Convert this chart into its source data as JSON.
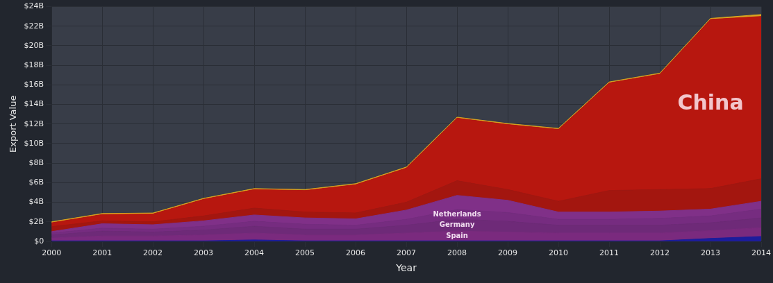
{
  "chart_data": {
    "type": "area",
    "stacked": true,
    "xlabel": "Year",
    "ylabel": "Export Value",
    "x": [
      2000,
      2001,
      2002,
      2003,
      2004,
      2005,
      2006,
      2007,
      2008,
      2009,
      2010,
      2011,
      2012,
      2013,
      2014
    ],
    "xlim": [
      2000,
      2014
    ],
    "xticks": [
      2000,
      2001,
      2002,
      2003,
      2004,
      2005,
      2006,
      2007,
      2008,
      2009,
      2010,
      2011,
      2012,
      2013,
      2014
    ],
    "ylim": [
      0,
      24
    ],
    "yticks": [
      {
        "value": 0,
        "label": "$0"
      },
      {
        "value": 2,
        "label": "$2B"
      },
      {
        "value": 4,
        "label": "$4B"
      },
      {
        "value": 6,
        "label": "$6B"
      },
      {
        "value": 8,
        "label": "$8B"
      },
      {
        "value": 10,
        "label": "$10B"
      },
      {
        "value": 12,
        "label": "$12B"
      },
      {
        "value": 14,
        "label": "$14B"
      },
      {
        "value": 16,
        "label": "$16B"
      },
      {
        "value": 18,
        "label": "$18B"
      },
      {
        "value": 20,
        "label": "$20B"
      },
      {
        "value": 22,
        "label": "$22B"
      },
      {
        "value": 24,
        "label": "$24B"
      }
    ],
    "grid": true,
    "legend": false,
    "series": [
      {
        "color": "#1c1c9c",
        "values": [
          0.05,
          0.05,
          0.05,
          0.05,
          0.15,
          0.05,
          0.05,
          0.05,
          0.05,
          0.05,
          0.05,
          0.05,
          0.05,
          0.3,
          0.5
        ]
      },
      {
        "name": "Spain",
        "color": "#7a2a7e",
        "values": [
          0.3,
          0.5,
          0.5,
          0.6,
          0.7,
          0.6,
          0.6,
          0.8,
          1.0,
          0.9,
          0.8,
          0.8,
          0.8,
          0.8,
          0.9
        ]
      },
      {
        "name": "Germany",
        "color": "#6e2a78",
        "values": [
          0.3,
          0.5,
          0.4,
          0.5,
          0.7,
          0.6,
          0.6,
          0.8,
          1.2,
          1.1,
          0.8,
          0.8,
          0.8,
          0.8,
          1.0
        ]
      },
      {
        "name": "Netherlands",
        "color": "#762c80",
        "values": [
          0.2,
          0.3,
          0.3,
          0.4,
          0.5,
          0.5,
          0.4,
          0.6,
          1.0,
          0.9,
          0.6,
          0.6,
          0.7,
          0.7,
          0.9
        ]
      },
      {
        "color": "#803088",
        "values": [
          0.15,
          0.45,
          0.45,
          0.55,
          0.65,
          0.65,
          0.65,
          0.95,
          1.45,
          1.25,
          0.75,
          0.75,
          0.75,
          0.7,
          0.8
        ]
      },
      {
        "color": "#a3160f",
        "values": [
          0.5,
          0.3,
          0.3,
          0.5,
          0.7,
          0.6,
          0.6,
          0.8,
          1.5,
          1.1,
          1.1,
          2.2,
          2.2,
          2.1,
          2.3
        ]
      },
      {
        "name": "China",
        "color": "#b7170f",
        "values": [
          0.4,
          0.65,
          0.8,
          1.7,
          1.9,
          2.2,
          2.9,
          3.5,
          6.4,
          6.65,
          7.35,
          11.0,
          11.8,
          17.3,
          16.6
        ]
      },
      {
        "color": "#d9a520",
        "values": [
          0.1,
          0.1,
          0.1,
          0.1,
          0.1,
          0.1,
          0.1,
          0.1,
          0.1,
          0.1,
          0.1,
          0.1,
          0.1,
          0.1,
          0.2
        ]
      }
    ]
  }
}
